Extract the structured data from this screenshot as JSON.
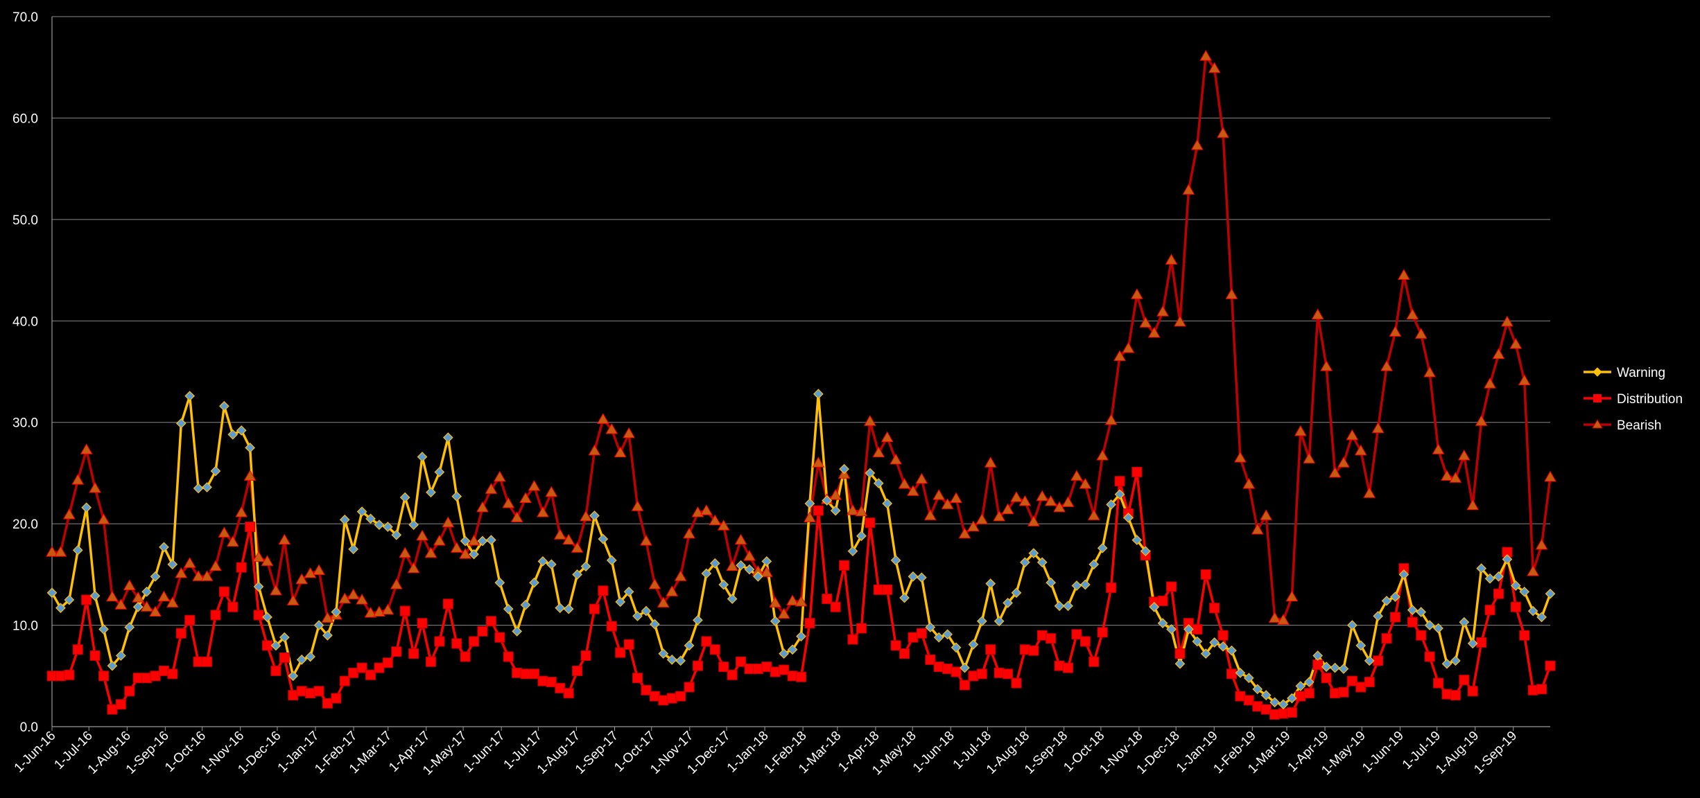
{
  "chart_data": {
    "type": "line",
    "title": "",
    "xlabel": "",
    "ylabel": "",
    "ylim": [
      0,
      70
    ],
    "y_ticks": [
      "0.0",
      "10.0",
      "20.0",
      "30.0",
      "40.0",
      "50.0",
      "60.0",
      "70.0"
    ],
    "grid": true,
    "legend_position": "right",
    "x_tick_labels": [
      "1-Jun-16",
      "1-Jul-16",
      "1-Aug-16",
      "1-Sep-16",
      "1-Oct-16",
      "1-Nov-16",
      "1-Dec-16",
      "1-Jan-17",
      "1-Feb-17",
      "1-Mar-17",
      "1-Apr-17",
      "1-May-17",
      "1-Jun-17",
      "1-Jul-17",
      "1-Aug-17",
      "1-Sep-17",
      "1-Oct-17",
      "1-Nov-17",
      "1-Dec-17",
      "1-Jan-18",
      "1-Feb-18",
      "1-Mar-18",
      "1-Apr-18",
      "1-May-18",
      "1-Jun-18",
      "1-Jul-18",
      "1-Aug-18",
      "1-Sep-18",
      "1-Oct-18",
      "1-Nov-18",
      "1-Dec-18",
      "1-Jan-19",
      "1-Feb-19",
      "1-Mar-19",
      "1-Apr-19",
      "1-May-19",
      "1-Jun-19",
      "1-Jul-19",
      "1-Aug-19",
      "1-Sep-19"
    ],
    "x_start": "1-Jun-16",
    "x_end": "1-Oct-19",
    "points_per_series": 175,
    "series": [
      {
        "name": "Warning",
        "color": "#FFC000",
        "marker": "diamond",
        "marker_fill": "#5B9BD5",
        "values": [
          13.2,
          11.7,
          12.5,
          17.4,
          21.6,
          12.9,
          9.6,
          6.0,
          7.0,
          9.8,
          11.8,
          13.3,
          14.8,
          17.7,
          16.0,
          29.9,
          32.6,
          23.5,
          23.6,
          25.2,
          31.6,
          28.8,
          29.2,
          27.5,
          13.8,
          10.8,
          8.0,
          8.8,
          5.0,
          6.6,
          6.9,
          10.0,
          9.0,
          11.3,
          20.4,
          17.5,
          21.2,
          20.5,
          19.9,
          19.7,
          18.9,
          22.6,
          19.9,
          26.6,
          23.1,
          25.1,
          28.5,
          22.7,
          18.3,
          17.0,
          18.3,
          18.4,
          14.2,
          11.6,
          9.4,
          12.0,
          14.2,
          16.3,
          16.0,
          11.7,
          11.6,
          15.0,
          15.8,
          20.8,
          18.5,
          16.4,
          12.3,
          13.3,
          10.9,
          11.4,
          10.1,
          7.2,
          6.6,
          6.5,
          8.0,
          10.5,
          15.1,
          16.1,
          14.0,
          12.6,
          15.9,
          15.5,
          14.8,
          16.3,
          10.4,
          7.2,
          7.6,
          8.9,
          22.0,
          32.8,
          22.3,
          21.3,
          25.4,
          17.3,
          18.8,
          25.0,
          24.0,
          22.0,
          16.4,
          12.7,
          14.8,
          14.7,
          9.8,
          8.8,
          9.1,
          7.8,
          5.8,
          8.1,
          10.4,
          14.1,
          10.4,
          12.2,
          13.2,
          16.2,
          17.1,
          16.2,
          14.2,
          11.9,
          11.9,
          13.9,
          14.0,
          16.0,
          17.6,
          21.9,
          22.9,
          20.6,
          18.4,
          17.3,
          11.8,
          10.2,
          9.6,
          6.2,
          9.6,
          8.4,
          7.2,
          8.3,
          7.9,
          7.5,
          5.3,
          4.8,
          3.7,
          3.1,
          2.4,
          2.2,
          2.8,
          4.0,
          4.4,
          7.0,
          5.9,
          5.8,
          5.7,
          10.0,
          8.0,
          6.5,
          10.9,
          12.4,
          12.8,
          15.0,
          11.5,
          11.3,
          10.0,
          9.7,
          6.2,
          6.5,
          10.3,
          8.2,
          15.6,
          14.6,
          14.8,
          16.5,
          13.9,
          13.3,
          11.4,
          10.8,
          13.1
        ]
      },
      {
        "name": "Distribution",
        "color": "#FF0000",
        "marker": "square",
        "marker_fill": "#FF0000",
        "values": [
          5.0,
          5.0,
          5.1,
          7.6,
          12.5,
          7.0,
          5.0,
          1.7,
          2.2,
          3.5,
          4.8,
          4.8,
          5.0,
          5.5,
          5.2,
          9.2,
          10.5,
          6.4,
          6.4,
          11.0,
          13.3,
          11.8,
          15.7,
          19.7,
          11.0,
          8.0,
          5.5,
          6.8,
          3.1,
          3.5,
          3.3,
          3.5,
          2.3,
          2.8,
          4.5,
          5.3,
          5.8,
          5.1,
          5.8,
          6.3,
          7.4,
          11.4,
          7.2,
          10.2,
          6.4,
          8.4,
          12.1,
          8.2,
          6.9,
          8.4,
          9.4,
          10.4,
          8.8,
          6.9,
          5.3,
          5.2,
          5.2,
          4.5,
          4.4,
          3.8,
          3.3,
          5.5,
          7.0,
          11.6,
          13.4,
          9.9,
          7.3,
          8.1,
          4.8,
          3.6,
          3.0,
          2.6,
          2.8,
          3.0,
          3.9,
          6.0,
          8.4,
          7.6,
          5.9,
          5.1,
          6.4,
          5.7,
          5.7,
          5.9,
          5.4,
          5.6,
          5.0,
          4.9,
          10.2,
          21.3,
          12.6,
          11.8,
          15.9,
          8.6,
          9.7,
          20.1,
          13.5,
          13.5,
          8.0,
          7.2,
          8.8,
          9.2,
          6.6,
          5.9,
          5.7,
          5.4,
          4.1,
          5.0,
          5.2,
          7.6,
          5.3,
          5.2,
          4.3,
          7.6,
          7.5,
          9.0,
          8.7,
          6.0,
          5.8,
          9.1,
          8.4,
          6.4,
          9.3,
          13.7,
          24.2,
          21.0,
          25.1,
          16.9,
          12.3,
          12.4,
          13.8,
          7.2,
          10.2,
          9.6,
          15.0,
          11.7,
          9.0,
          5.2,
          3.0,
          2.6,
          2.0,
          1.7,
          1.2,
          1.3,
          1.4,
          3.0,
          3.3,
          6.1,
          4.8,
          3.3,
          3.4,
          4.5,
          3.9,
          4.4,
          6.5,
          8.7,
          10.8,
          15.6,
          10.3,
          9.0,
          6.9,
          4.3,
          3.2,
          3.1,
          4.6,
          3.5,
          8.3,
          11.5,
          13.1,
          17.2,
          11.8,
          9.0,
          3.6,
          3.7,
          6.0
        ]
      },
      {
        "name": "Bearish",
        "color": "#C00000",
        "marker": "triangle",
        "marker_fill": "#C55A11",
        "values": [
          17.2,
          17.2,
          20.9,
          24.3,
          27.3,
          23.5,
          20.4,
          12.8,
          12.0,
          13.9,
          12.7,
          11.8,
          11.3,
          12.8,
          12.2,
          15.1,
          16.1,
          14.8,
          14.8,
          15.8,
          19.1,
          18.2,
          21.1,
          24.7,
          16.7,
          16.3,
          13.4,
          18.4,
          12.4,
          14.5,
          15.1,
          15.4,
          10.7,
          11.0,
          12.6,
          13.0,
          12.5,
          11.2,
          11.3,
          11.5,
          14.0,
          17.1,
          15.6,
          18.8,
          17.1,
          18.3,
          20.1,
          17.6,
          17.0,
          18.3,
          21.6,
          23.4,
          24.6,
          22.0,
          20.6,
          22.5,
          23.7,
          21.1,
          23.1,
          18.9,
          18.4,
          17.6,
          20.7,
          27.2,
          30.3,
          29.3,
          27.0,
          28.9,
          21.7,
          18.3,
          14.0,
          12.2,
          13.3,
          14.8,
          19.0,
          21.1,
          21.3,
          20.3,
          19.8,
          15.8,
          18.4,
          16.8,
          15.3,
          15.2,
          12.2,
          11.1,
          12.4,
          12.3,
          20.6,
          26.0,
          22.4,
          22.8,
          24.9,
          21.3,
          21.2,
          30.1,
          27.0,
          28.5,
          26.3,
          23.9,
          23.2,
          24.4,
          20.8,
          22.8,
          21.9,
          22.5,
          19.0,
          19.7,
          20.4,
          26.0,
          20.7,
          21.4,
          22.6,
          22.2,
          20.2,
          22.7,
          22.2,
          21.6,
          22.1,
          24.7,
          23.9,
          20.8,
          26.7,
          30.2,
          36.5,
          37.3,
          42.6,
          39.8,
          38.8,
          40.9,
          46.0,
          39.9,
          52.9,
          57.3,
          66.1,
          64.9,
          58.5,
          42.6,
          26.5,
          23.9,
          19.4,
          20.8,
          10.7,
          10.5,
          12.8,
          29.1,
          26.4,
          40.6,
          35.5,
          25.0,
          26.0,
          28.7,
          27.2,
          23.0,
          29.4,
          35.5,
          38.9,
          44.5,
          40.6,
          38.7,
          34.9,
          27.3,
          24.7,
          24.5,
          26.7,
          21.8,
          30.1,
          33.8,
          36.7,
          39.9,
          37.7,
          34.1,
          15.3,
          17.9,
          24.6
        ]
      }
    ]
  }
}
